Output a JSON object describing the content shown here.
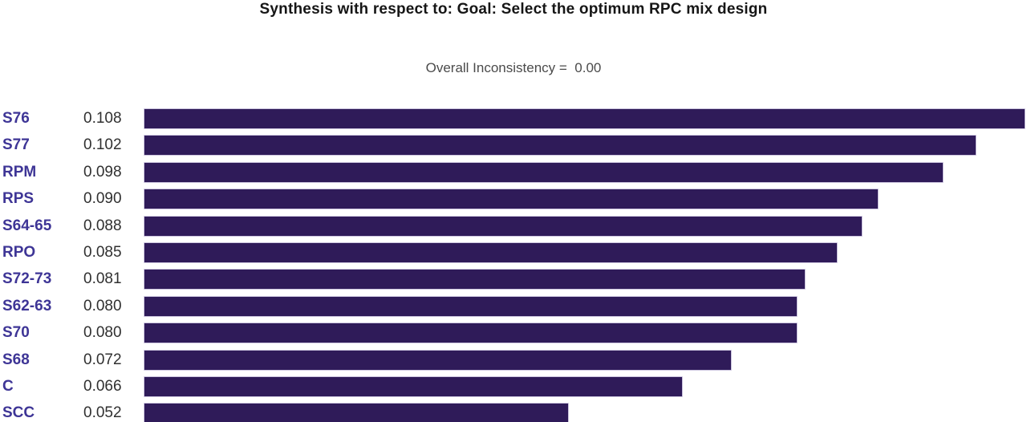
{
  "header": {
    "title": "Synthesis with respect to: Goal: Select the optimum RPC mix design",
    "subtitle": "Overall Inconsistency =  0.00"
  },
  "chart_data": {
    "type": "bar",
    "orientation": "horizontal",
    "title": "Synthesis with respect to: Goal: Select the optimum RPC mix design",
    "annotation": "Overall Inconsistency = 0.00",
    "categories": [
      "S76",
      "S77",
      "RPM",
      "RPS",
      "S64-65",
      "RPO",
      "S72-73",
      "S62-63",
      "S70",
      "S68",
      "C",
      "SCC"
    ],
    "values": [
      0.108,
      0.102,
      0.098,
      0.09,
      0.088,
      0.085,
      0.081,
      0.08,
      0.08,
      0.072,
      0.066,
      0.052
    ],
    "value_labels": [
      "0.108",
      "0.102",
      "0.098",
      "0.090",
      "0.088",
      "0.085",
      "0.081",
      "0.080",
      "0.080",
      "0.072",
      "0.066",
      "0.052"
    ],
    "xlabel": "",
    "ylabel": "",
    "xlim": [
      0,
      0.1085
    ],
    "grid": false,
    "legend": false,
    "sorted": "descending"
  },
  "colors": {
    "bar_fill": "#2f1b59",
    "bar_outline": "#cdc6df",
    "category_label": "#3e3596",
    "value_label": "#303030",
    "title": "#161616",
    "subtitle": "#4b4b4b",
    "background": "#ffffff"
  }
}
